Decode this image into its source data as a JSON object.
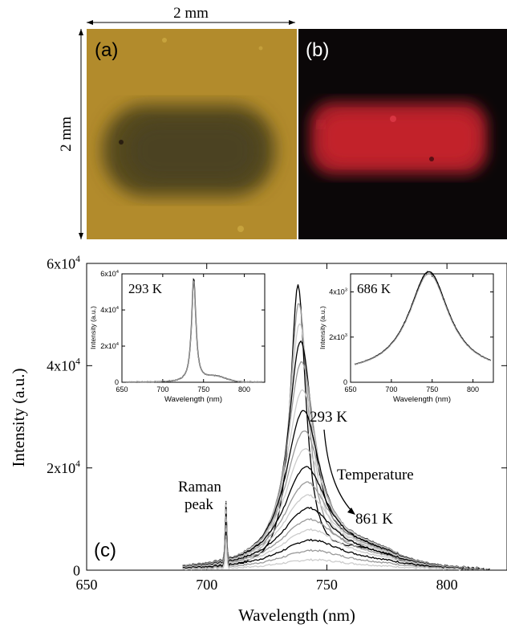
{
  "panels": {
    "a": {
      "label": "(a)"
    },
    "b": {
      "label": "(b)"
    },
    "c": {
      "label": "(c)"
    }
  },
  "scale": {
    "horizontal": "2 mm",
    "vertical": "2 mm"
  },
  "colors": {
    "panel_a_background": "#b28b2c",
    "panel_a_spot": "#54491f",
    "panel_b_background": "#0b0708",
    "panel_b_glow": "#c2202c"
  },
  "chart_data": [
    {
      "type": "line",
      "xlabel": "Wavelength (nm)",
      "ylabel": "Intensity (a.u.)",
      "xlim": [
        650,
        825
      ],
      "ylim": [
        0,
        60000
      ],
      "xticks": [
        650,
        700,
        750,
        800
      ],
      "xtick_labels": [
        "650",
        "700",
        "750",
        "800"
      ],
      "yticks": [
        0,
        20000,
        40000,
        60000
      ],
      "ytick_labels": [
        "0",
        "2x10",
        "4x10",
        "6x10"
      ],
      "ytick_exponents": [
        "",
        "4",
        "4",
        "4"
      ],
      "series_colors": [
        "#000000",
        "#999999",
        "#cccccc"
      ],
      "peak_center_nm": 738,
      "raman_peak_nm": 708,
      "raman_peak_height": 12500,
      "peak_heights": [
        55500,
        52000,
        48000,
        44500,
        40500,
        35000,
        31000,
        27000,
        23500,
        20000,
        17000,
        14500,
        12000,
        9800,
        7800,
        5800,
        3800,
        2000
      ],
      "annotations": {
        "raman": [
          "Raman",
          "peak"
        ],
        "temperature_start": "293 K",
        "temperature_arrow": "Temperature",
        "temperature_end": "861 K"
      }
    },
    {
      "type": "line",
      "inset": "left",
      "title": "293 K",
      "xlabel": "Wavelength (nm)",
      "ylabel": "Intensity (a.u.)",
      "xlim": [
        650,
        825
      ],
      "ylim": [
        0,
        60000
      ],
      "xticks": [
        650,
        700,
        750,
        800
      ],
      "xtick_labels": [
        "650",
        "700",
        "750",
        "800"
      ],
      "yticks": [
        0,
        20000,
        40000,
        60000
      ],
      "ytick_labels": [
        "0",
        "2x10",
        "4x10",
        "6x10"
      ],
      "ytick_exponents": [
        "",
        "4",
        "4",
        "4"
      ],
      "series": [
        {
          "color": "#000000",
          "peak_nm": 738,
          "height": 57000
        },
        {
          "color": "#999999",
          "peak_nm": 738,
          "height": 56000
        }
      ]
    },
    {
      "type": "line",
      "inset": "right",
      "title": "686 K",
      "xlabel": "Wavelength (nm)",
      "ylabel": "Intensity (a.u.)",
      "xlim": [
        650,
        825
      ],
      "ylim": [
        0,
        4800
      ],
      "xticks": [
        650,
        700,
        750,
        800
      ],
      "xtick_labels": [
        "650",
        "700",
        "750",
        "800"
      ],
      "yticks": [
        0,
        2000,
        4000
      ],
      "ytick_labels": [
        "0",
        "2x10",
        "4x10"
      ],
      "ytick_exponents": [
        "",
        "3",
        "3"
      ],
      "series": [
        {
          "color": "#000000",
          "peak_nm": 746,
          "height": 4550
        },
        {
          "color": "#999999",
          "peak_nm": 746,
          "height": 4450
        }
      ]
    }
  ]
}
